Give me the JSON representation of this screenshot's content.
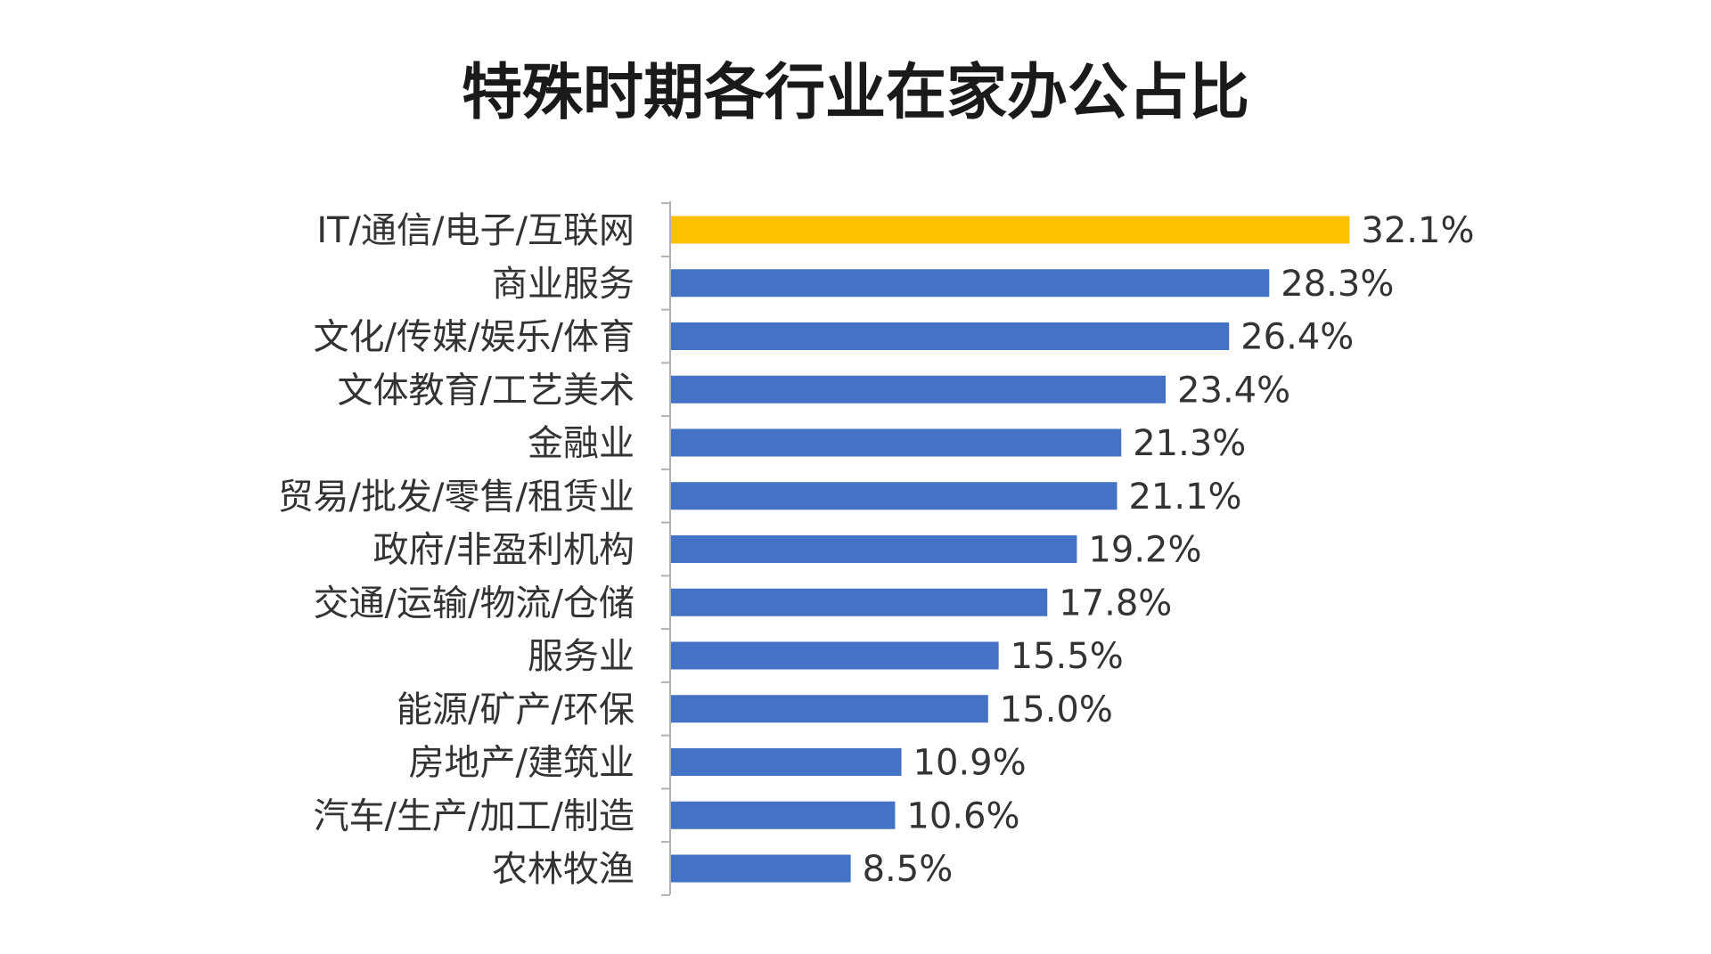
{
  "chart_data": {
    "type": "bar",
    "orientation": "horizontal",
    "title": "特殊时期各行业在家办公占比",
    "categories": [
      "IT/通信/电子/互联网",
      "商业服务",
      "文化/传媒/娱乐/体育",
      "文体教育/工艺美术",
      "金融业",
      "贸易/批发/零售/租赁业",
      "政府/非盈利机构",
      "交通/运输/物流/仓储",
      "服务业",
      "能源/矿产/环保",
      "房地产/建筑业",
      "汽车/生产/加工/制造",
      "农林牧渔"
    ],
    "values": [
      32.1,
      28.3,
      26.4,
      23.4,
      21.3,
      21.1,
      19.2,
      17.8,
      15.5,
      15.0,
      10.9,
      10.6,
      8.5
    ],
    "value_labels": [
      "32.1%",
      "28.3%",
      "26.4%",
      "23.4%",
      "21.3%",
      "21.1%",
      "19.2%",
      "17.8%",
      "15.5%",
      "15.0%",
      "10.9%",
      "10.6%",
      "8.5%"
    ],
    "unit": "%",
    "xlim": [
      0,
      35
    ],
    "grid": false,
    "legend": "none",
    "highlight_index": 0,
    "colors": {
      "bar": "#4472C4",
      "highlight": "#FFC000"
    }
  }
}
